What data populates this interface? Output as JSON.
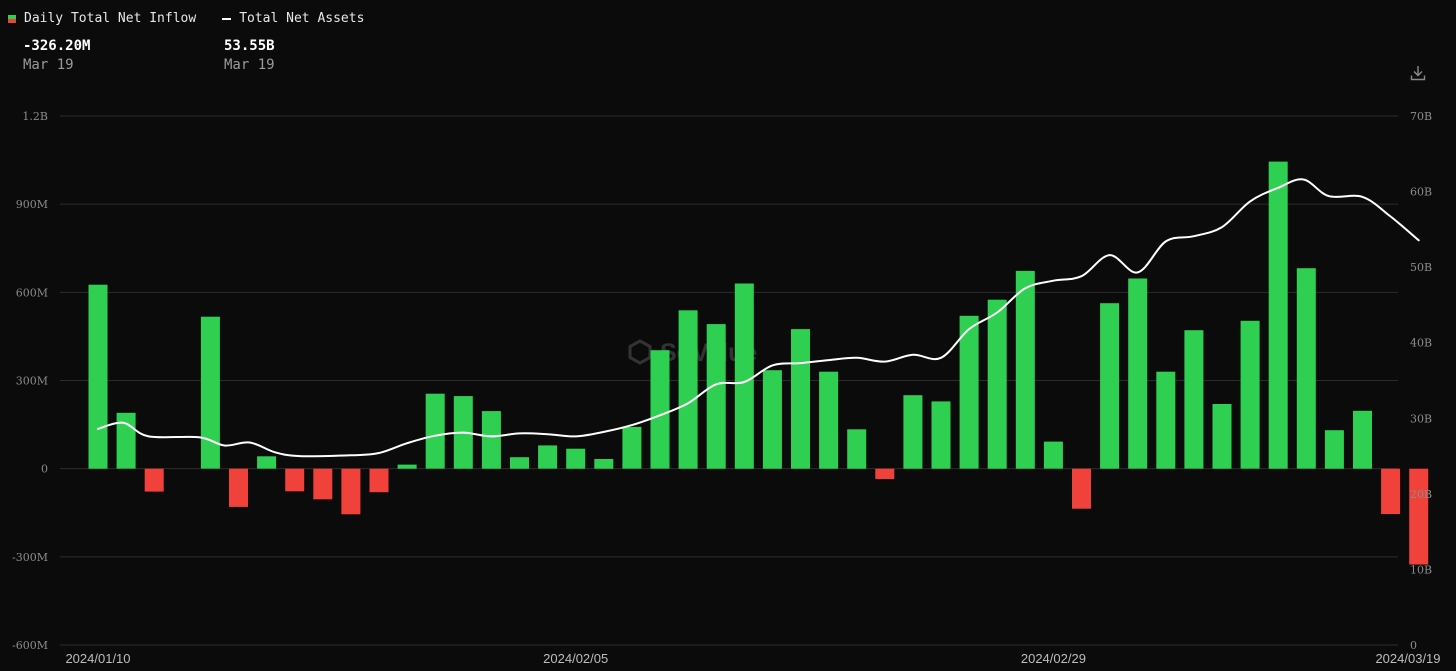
{
  "legend": {
    "inflow_label": "Daily Total Net Inflow",
    "assets_label": "Total Net Assets"
  },
  "readout": {
    "inflow_value": "-326.20M",
    "inflow_date": "Mar 19",
    "assets_value": "53.55B",
    "assets_date": "Mar 19"
  },
  "watermark": "SoValue",
  "colors": {
    "background": "#0b0b0b",
    "positive": "#2fd052",
    "negative": "#f0413b",
    "line": "#ffffff",
    "grid": "#2c2c2c"
  },
  "icons": {
    "download": "download-icon"
  },
  "chart_data": {
    "type": "bar",
    "left_axis": {
      "ticks": [
        "1.2B",
        "900M",
        "600M",
        "300M",
        "0",
        "-300M",
        "-600M"
      ],
      "ylim": [
        -600,
        1200
      ],
      "unit": "M"
    },
    "right_axis": {
      "ticks": [
        "70B",
        "60B",
        "50B",
        "40B",
        "30B",
        "20B",
        "10B",
        "0"
      ],
      "ylim": [
        0,
        70
      ],
      "unit": "B"
    },
    "x_tick_labels": [
      "2024/01/10",
      "2024/02/05",
      "2024/02/29",
      "2024/03/19"
    ],
    "x_tick_index": [
      0,
      17,
      34,
      47
    ],
    "grid": true,
    "legend_position": "top-left",
    "series": [
      {
        "name": "Daily Total Net Inflow",
        "axis": "left",
        "values": [
          626,
          190,
          -78,
          0,
          517,
          -130,
          42,
          -77,
          -104,
          -155,
          -80,
          14,
          255,
          247,
          196,
          39,
          79,
          68,
          33,
          142,
          403,
          539,
          492,
          630,
          335,
          475,
          330,
          134,
          -35,
          250,
          229,
          520,
          575,
          673,
          92,
          -136,
          563,
          647,
          330,
          471,
          220,
          503,
          1045,
          682,
          131,
          197,
          -154,
          -326
        ]
      },
      {
        "name": "Total Net Assets",
        "axis": "right",
        "points": [
          [
            0,
            28.6
          ],
          [
            0.9,
            29.4
          ],
          [
            1.8,
            27.6
          ],
          [
            3.6,
            27.5
          ],
          [
            4.5,
            26.4
          ],
          [
            5.4,
            26.8
          ],
          [
            6.3,
            25.5
          ],
          [
            7.2,
            25.0
          ],
          [
            9.0,
            25.1
          ],
          [
            10.0,
            25.4
          ],
          [
            11.0,
            26.7
          ],
          [
            12.0,
            27.7
          ],
          [
            13.0,
            28.1
          ],
          [
            14.0,
            27.6
          ],
          [
            15.0,
            28.0
          ],
          [
            16.0,
            27.9
          ],
          [
            17.0,
            27.6
          ],
          [
            18.0,
            28.2
          ],
          [
            19.0,
            29.1
          ],
          [
            20.0,
            30.4
          ],
          [
            21.0,
            32.0
          ],
          [
            22.0,
            34.5
          ],
          [
            23.0,
            34.8
          ],
          [
            24.0,
            37.0
          ],
          [
            25.0,
            37.3
          ],
          [
            26.0,
            37.7
          ],
          [
            27.0,
            38.0
          ],
          [
            28.0,
            37.5
          ],
          [
            29.0,
            38.4
          ],
          [
            30.0,
            38.0
          ],
          [
            31.0,
            41.8
          ],
          [
            32.0,
            44.0
          ],
          [
            33.0,
            47.2
          ],
          [
            34.0,
            48.2
          ],
          [
            35.0,
            48.8
          ],
          [
            36.0,
            51.6
          ],
          [
            37.0,
            49.3
          ],
          [
            38.0,
            53.4
          ],
          [
            39.0,
            54.1
          ],
          [
            40.0,
            55.3
          ],
          [
            41.0,
            58.7
          ],
          [
            42.0,
            60.5
          ],
          [
            42.9,
            61.6
          ],
          [
            43.8,
            59.4
          ],
          [
            45.0,
            59.3
          ],
          [
            46.0,
            56.7
          ],
          [
            47.0,
            53.55
          ]
        ]
      }
    ]
  }
}
